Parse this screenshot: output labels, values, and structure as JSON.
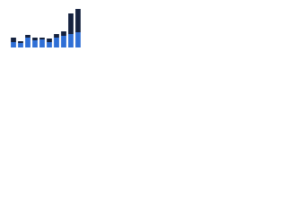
{
  "chart_data": {
    "type": "bar",
    "stacked": true,
    "categories": [
      null,
      null,
      null,
      null,
      null,
      null,
      null,
      null,
      null,
      null
    ],
    "series": [
      {
        "color": "#2f6fd6",
        "values": [
          6,
          5,
          11,
          8,
          9,
          6,
          11,
          13,
          15,
          17
        ]
      },
      {
        "color": "#15223f",
        "values": [
          5,
          2,
          3,
          3,
          2,
          4,
          4,
          5,
          23,
          26
        ]
      }
    ],
    "ylim": [
      0,
      45
    ]
  }
}
